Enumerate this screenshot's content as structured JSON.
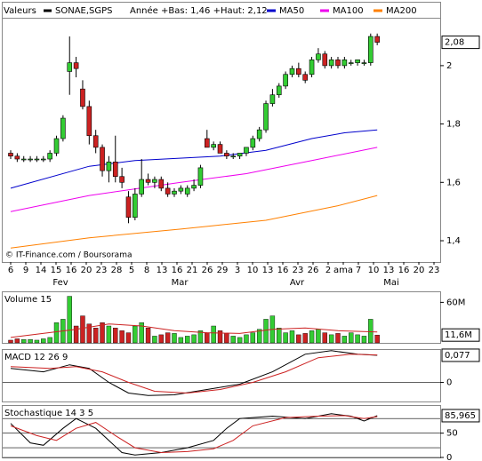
{
  "header": {
    "label": "Valeurs",
    "symbol": "SONAE,SGPS",
    "range": "Année +Bas: 1,46 +Haut: 2,12"
  },
  "chart_data": [
    {
      "type": "candlestick",
      "open": [
        1.7,
        1.69,
        1.68,
        1.68,
        1.68,
        1.68,
        1.68,
        1.7,
        1.75,
        1.98,
        2.01,
        1.92,
        1.86,
        1.76,
        1.72,
        1.64,
        1.67,
        1.62,
        1.55,
        1.48,
        1.56,
        1.61,
        1.6,
        1.61,
        1.58,
        1.56,
        1.57,
        1.56,
        1.58,
        1.59,
        1.75,
        1.72,
        1.73,
        1.7,
        1.69,
        1.69,
        1.7,
        1.72,
        1.75,
        1.78,
        1.87,
        1.9,
        1.93,
        1.97,
        1.99,
        1.97,
        1.97,
        2.02,
        2.04,
        2.0,
        2.02,
        2.0,
        2.01,
        2.01,
        2.01,
        2.01,
        2.1
      ],
      "high": [
        1.71,
        1.7,
        1.69,
        1.69,
        1.69,
        1.69,
        1.71,
        1.76,
        1.83,
        2.1,
        2.03,
        1.95,
        1.88,
        1.78,
        1.73,
        1.69,
        1.76,
        1.65,
        1.57,
        1.58,
        1.68,
        1.63,
        1.62,
        1.62,
        1.6,
        1.58,
        1.59,
        1.59,
        1.61,
        1.66,
        1.78,
        1.74,
        1.74,
        1.71,
        1.7,
        1.7,
        1.72,
        1.76,
        1.79,
        1.88,
        1.92,
        1.94,
        1.98,
        2.0,
        2.01,
        1.98,
        2.03,
        2.06,
        2.05,
        2.03,
        2.03,
        2.03,
        2.02,
        2.02,
        2.02,
        2.11,
        2.11
      ],
      "low": [
        1.68,
        1.67,
        1.67,
        1.67,
        1.67,
        1.67,
        1.67,
        1.69,
        1.74,
        1.9,
        1.96,
        1.85,
        1.73,
        1.7,
        1.62,
        1.6,
        1.6,
        1.58,
        1.46,
        1.47,
        1.55,
        1.59,
        1.58,
        1.57,
        1.55,
        1.55,
        1.56,
        1.55,
        1.57,
        1.58,
        1.72,
        1.71,
        1.7,
        1.68,
        1.68,
        1.68,
        1.69,
        1.71,
        1.74,
        1.77,
        1.86,
        1.89,
        1.92,
        1.96,
        1.96,
        1.94,
        1.96,
        2.01,
        1.99,
        1.99,
        1.99,
        1.99,
        2.0,
        2.0,
        2.0,
        2.0,
        2.07
      ],
      "close": [
        1.69,
        1.68,
        1.68,
        1.68,
        1.68,
        1.68,
        1.7,
        1.75,
        1.82,
        2.01,
        1.99,
        1.86,
        1.76,
        1.72,
        1.64,
        1.67,
        1.62,
        1.6,
        1.48,
        1.56,
        1.61,
        1.6,
        1.61,
        1.58,
        1.56,
        1.57,
        1.58,
        1.58,
        1.59,
        1.65,
        1.72,
        1.73,
        1.7,
        1.69,
        1.69,
        1.7,
        1.72,
        1.75,
        1.78,
        1.87,
        1.9,
        1.93,
        1.97,
        1.99,
        1.97,
        1.95,
        2.02,
        2.04,
        2.0,
        2.02,
        2.0,
        2.02,
        2.01,
        2.02,
        2.01,
        2.1,
        2.08
      ],
      "last_label": "2,08",
      "up_color": "#33cc33",
      "down_color": "#cc2222",
      "series": [
        {
          "name": "MA50",
          "color": "#0000cc",
          "x": [
            0,
            12,
            19,
            32,
            39,
            46,
            51,
            56
          ],
          "values": [
            1.58,
            1.655,
            1.675,
            1.69,
            1.71,
            1.75,
            1.77,
            1.78
          ]
        },
        {
          "name": "MA100",
          "color": "#ee00ee",
          "x": [
            0,
            12,
            26,
            36,
            46,
            56
          ],
          "values": [
            1.5,
            1.555,
            1.6,
            1.63,
            1.675,
            1.72
          ]
        },
        {
          "name": "MA200",
          "color": "#ff8000",
          "x": [
            0,
            12,
            26,
            39,
            50,
            56
          ],
          "values": [
            1.375,
            1.41,
            1.44,
            1.47,
            1.52,
            1.555
          ]
        }
      ],
      "ylim": [
        1.327,
        2.161
      ],
      "yticks": [
        {
          "value": 1.4,
          "label": "1,4"
        },
        {
          "value": 1.6,
          "label": "1,6"
        },
        {
          "value": 1.8,
          "label": "1,8"
        },
        2
      ],
      "source": "© IT-Finance.com / Boursorama",
      "x_labels": [
        "6",
        "9",
        "14",
        "15",
        "16",
        "20",
        "23",
        "28",
        "5",
        "8",
        "13",
        "16",
        "21",
        "26",
        "29",
        "3",
        "10",
        "13",
        "16",
        "23",
        "26",
        "2",
        "ama",
        "7",
        "10",
        "13",
        "16",
        "20",
        "23"
      ],
      "months": [
        "Fev",
        "Mar",
        "Avr",
        "Mai"
      ]
    },
    {
      "type": "bar",
      "title": "Volume 15",
      "values": [
        4,
        6,
        5,
        5,
        4,
        6,
        8,
        30,
        35,
        69,
        25,
        40,
        28,
        22,
        30,
        25,
        22,
        18,
        15,
        25,
        30,
        22,
        10,
        12,
        15,
        14,
        8,
        10,
        12,
        18,
        15,
        25,
        18,
        14,
        10,
        8,
        12,
        15,
        20,
        35,
        40,
        22,
        15,
        18,
        12,
        14,
        18,
        20,
        15,
        12,
        14,
        10,
        15,
        12,
        10,
        35,
        11.6
      ],
      "last_label": "11,6M",
      "line": {
        "color": "#cc2222",
        "x": [
          0,
          10,
          15,
          20,
          25,
          30,
          35,
          40,
          45,
          50,
          56
        ],
        "values": [
          8,
          20,
          28,
          25,
          18,
          15,
          14,
          20,
          22,
          18,
          16
        ]
      },
      "ylim": [
        0,
        75
      ],
      "yticks": [
        {
          "value": 60,
          "label": "60M"
        }
      ]
    },
    {
      "type": "line",
      "title": "MACD 12 26 9",
      "series": [
        {
          "color": "#000000",
          "x": [
            0,
            5,
            9,
            12,
            15,
            18,
            21,
            25,
            30,
            35,
            40,
            45,
            49,
            53,
            56
          ],
          "values": [
            0.04,
            0.03,
            0.05,
            0.04,
            0.0,
            -0.03,
            -0.037,
            -0.035,
            -0.02,
            -0.005,
            0.03,
            0.08,
            0.09,
            0.08,
            0.077
          ]
        },
        {
          "color": "#cc2222",
          "x": [
            0,
            6,
            10,
            14,
            18,
            22,
            27,
            32,
            37,
            42,
            47,
            52,
            56
          ],
          "values": [
            0.045,
            0.04,
            0.045,
            0.03,
            0.0,
            -0.025,
            -0.03,
            -0.02,
            0.0,
            0.03,
            0.07,
            0.08,
            0.078
          ]
        }
      ],
      "last_label": "0,077",
      "ylim": [
        -0.054,
        0.092
      ],
      "yticks": [
        0
      ]
    },
    {
      "type": "line",
      "title": "Stochastique 14 3 5",
      "series": [
        {
          "color": "#000000",
          "x": [
            0,
            3,
            5,
            8,
            10,
            13,
            17,
            19,
            23,
            27,
            31,
            33,
            35,
            40,
            45,
            49,
            52,
            54,
            56
          ],
          "values": [
            70,
            30,
            25,
            60,
            80,
            60,
            10,
            5,
            10,
            20,
            35,
            60,
            80,
            85,
            80,
            90,
            85,
            75,
            85.965
          ]
        },
        {
          "color": "#cc2222",
          "x": [
            0,
            4,
            7,
            10,
            13,
            16,
            19,
            23,
            27,
            31,
            34,
            37,
            42,
            47,
            51,
            54,
            56
          ],
          "values": [
            65,
            45,
            35,
            60,
            72,
            45,
            20,
            10,
            12,
            18,
            35,
            65,
            82,
            85,
            86,
            80,
            84
          ]
        }
      ],
      "last_label": "85,965",
      "levels": [
        20,
        80
      ],
      "ylim": [
        0,
        106
      ],
      "yticks": [
        0,
        50
      ]
    }
  ]
}
